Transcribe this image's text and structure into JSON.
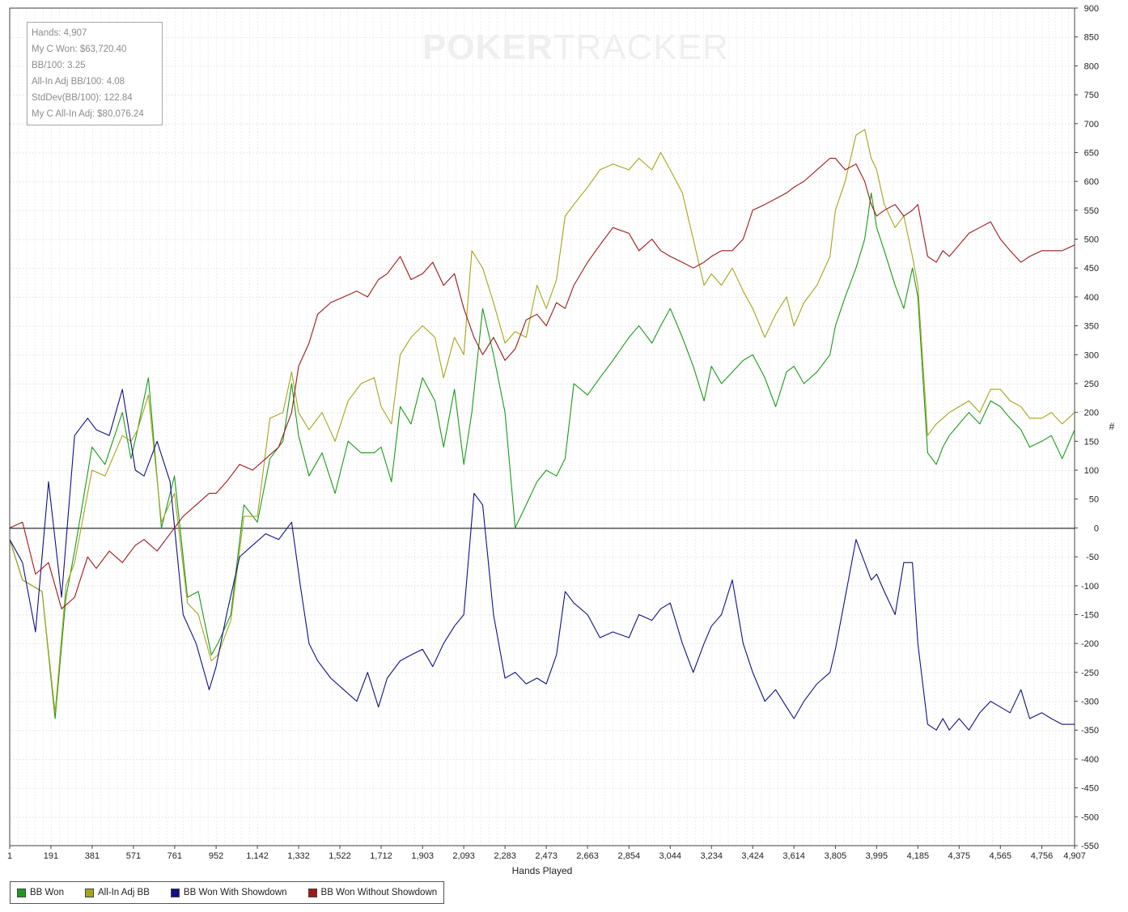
{
  "watermark": {
    "part1": "P",
    "chip": "O",
    "part2": "KER",
    "part3": "TRACKER"
  },
  "stats": [
    "Hands: 4,907",
    "My C Won: $63,720.40",
    "BB/100: 3.25",
    "All-In Adj BB/100: 4.08",
    "StdDev(BB/100): 122.84",
    "My C All-In Adj: $80,076.24"
  ],
  "chart_data": {
    "type": "line",
    "xlabel": "Hands Played",
    "ylabel": "#",
    "xlim": [
      1,
      4907
    ],
    "ylim": [
      -550,
      900
    ],
    "x_ticks": [
      1,
      191,
      381,
      571,
      761,
      952,
      1142,
      1332,
      1522,
      1712,
      1903,
      2093,
      2283,
      2473,
      2663,
      2854,
      3044,
      3234,
      3424,
      3614,
      3805,
      3995,
      4185,
      4375,
      4565,
      4756,
      4907
    ],
    "x_tick_labels": [
      "1",
      "191",
      "381",
      "571",
      "761",
      "952",
      "1,142",
      "1,332",
      "1,522",
      "1,712",
      "1,903",
      "2,093",
      "2,283",
      "2,473",
      "2,663",
      "2,854",
      "3,044",
      "3,234",
      "3,424",
      "3,614",
      "3,805",
      "3,995",
      "4,185",
      "4,375",
      "4,565",
      "4,756",
      "4,907"
    ],
    "y_ticks": [
      900,
      850,
      800,
      750,
      700,
      650,
      600,
      550,
      500,
      450,
      400,
      350,
      300,
      250,
      200,
      150,
      100,
      50,
      0,
      -50,
      -100,
      -150,
      -200,
      -250,
      -300,
      -350,
      -400,
      -450,
      -500,
      -550
    ],
    "grid": true,
    "legend_position": "bottom-left",
    "series": [
      {
        "name": "BB Won",
        "color": "#1a9a1a",
        "x": [
          1,
          60,
          150,
          210,
          260,
          300,
          380,
          440,
          520,
          560,
          590,
          640,
          700,
          760,
          820,
          870,
          930,
          960,
          1020,
          1080,
          1142,
          1200,
          1260,
          1300,
          1332,
          1380,
          1440,
          1500,
          1560,
          1620,
          1680,
          1712,
          1760,
          1800,
          1850,
          1903,
          1960,
          2000,
          2050,
          2093,
          2130,
          2180,
          2230,
          2283,
          2330,
          2380,
          2430,
          2473,
          2520,
          2560,
          2600,
          2663,
          2720,
          2780,
          2854,
          2900,
          2960,
          3000,
          3044,
          3100,
          3150,
          3200,
          3234,
          3280,
          3330,
          3380,
          3424,
          3480,
          3530,
          3580,
          3614,
          3660,
          3720,
          3780,
          3805,
          3850,
          3900,
          3940,
          3970,
          3995,
          4030,
          4080,
          4120,
          4160,
          4185,
          4230,
          4270,
          4300,
          4330,
          4375,
          4420,
          4470,
          4520,
          4565,
          4610,
          4660,
          4700,
          4756,
          4800,
          4850,
          4907
        ],
        "y": [
          -20,
          -90,
          -110,
          -330,
          -120,
          -40,
          140,
          110,
          200,
          120,
          170,
          260,
          0,
          90,
          -120,
          -110,
          -220,
          -200,
          -150,
          40,
          10,
          120,
          150,
          250,
          160,
          90,
          130,
          60,
          150,
          130,
          130,
          140,
          80,
          210,
          180,
          260,
          220,
          140,
          240,
          110,
          200,
          380,
          300,
          200,
          0,
          40,
          80,
          100,
          90,
          120,
          250,
          230,
          260,
          290,
          330,
          350,
          320,
          350,
          380,
          330,
          280,
          220,
          280,
          250,
          270,
          290,
          300,
          260,
          210,
          270,
          280,
          250,
          270,
          300,
          350,
          400,
          450,
          500,
          580,
          520,
          480,
          420,
          380,
          450,
          400,
          130,
          110,
          140,
          160,
          180,
          200,
          180,
          220,
          210,
          190,
          170,
          140,
          150,
          160,
          120,
          170
        ]
      },
      {
        "name": "All-In Adj BB",
        "color": "#a5a51a",
        "x": [
          1,
          60,
          150,
          210,
          260,
          300,
          380,
          440,
          520,
          560,
          590,
          640,
          700,
          760,
          820,
          870,
          930,
          960,
          1020,
          1080,
          1142,
          1200,
          1260,
          1300,
          1332,
          1380,
          1440,
          1500,
          1560,
          1620,
          1680,
          1712,
          1760,
          1800,
          1850,
          1903,
          1960,
          2000,
          2050,
          2093,
          2130,
          2180,
          2230,
          2283,
          2330,
          2380,
          2430,
          2473,
          2520,
          2560,
          2600,
          2663,
          2720,
          2780,
          2854,
          2900,
          2960,
          3000,
          3044,
          3100,
          3150,
          3200,
          3234,
          3280,
          3330,
          3380,
          3424,
          3480,
          3530,
          3580,
          3614,
          3660,
          3720,
          3780,
          3805,
          3850,
          3900,
          3940,
          3970,
          3995,
          4030,
          4080,
          4120,
          4160,
          4185,
          4230,
          4270,
          4300,
          4330,
          4375,
          4420,
          4470,
          4520,
          4565,
          4610,
          4660,
          4700,
          4756,
          4800,
          4850,
          4907
        ],
        "y": [
          -20,
          -90,
          -110,
          -320,
          -100,
          -60,
          100,
          90,
          160,
          150,
          170,
          230,
          10,
          60,
          -130,
          -150,
          -230,
          -220,
          -160,
          20,
          20,
          190,
          200,
          270,
          200,
          170,
          200,
          150,
          220,
          250,
          260,
          210,
          180,
          300,
          330,
          350,
          330,
          260,
          330,
          300,
          480,
          450,
          390,
          320,
          340,
          330,
          420,
          380,
          430,
          540,
          560,
          590,
          620,
          630,
          620,
          640,
          620,
          650,
          620,
          580,
          500,
          420,
          440,
          420,
          450,
          410,
          380,
          330,
          370,
          400,
          350,
          390,
          420,
          470,
          550,
          600,
          680,
          690,
          640,
          620,
          560,
          520,
          540,
          470,
          420,
          160,
          180,
          190,
          200,
          210,
          220,
          200,
          240,
          240,
          220,
          210,
          190,
          190,
          200,
          180,
          200
        ]
      },
      {
        "name": "BB Won With Showdown",
        "color": "#10108a",
        "x": [
          1,
          60,
          120,
          180,
          240,
          300,
          360,
          400,
          460,
          520,
          580,
          620,
          680,
          740,
          800,
          860,
          920,
          952,
          1000,
          1060,
          1120,
          1180,
          1240,
          1300,
          1340,
          1380,
          1420,
          1480,
          1540,
          1600,
          1650,
          1700,
          1740,
          1800,
          1850,
          1903,
          1950,
          2000,
          2050,
          2093,
          2140,
          2180,
          2230,
          2283,
          2330,
          2380,
          2430,
          2473,
          2520,
          2560,
          2600,
          2663,
          2720,
          2780,
          2854,
          2900,
          2960,
          3000,
          3044,
          3100,
          3150,
          3200,
          3234,
          3280,
          3330,
          3380,
          3424,
          3480,
          3530,
          3580,
          3614,
          3660,
          3720,
          3780,
          3805,
          3850,
          3900,
          3940,
          3970,
          3995,
          4030,
          4080,
          4120,
          4160,
          4185,
          4230,
          4270,
          4300,
          4330,
          4375,
          4420,
          4470,
          4520,
          4565,
          4610,
          4660,
          4700,
          4756,
          4800,
          4850,
          4907
        ],
        "y": [
          -20,
          -60,
          -180,
          80,
          -120,
          160,
          190,
          170,
          160,
          240,
          100,
          90,
          150,
          80,
          -150,
          -200,
          -280,
          -240,
          -150,
          -50,
          -30,
          -10,
          -20,
          10,
          -100,
          -200,
          -230,
          -260,
          -280,
          -300,
          -250,
          -310,
          -260,
          -230,
          -220,
          -210,
          -240,
          -200,
          -170,
          -150,
          60,
          40,
          -150,
          -260,
          -250,
          -270,
          -260,
          -270,
          -220,
          -110,
          -130,
          -150,
          -190,
          -180,
          -190,
          -150,
          -160,
          -140,
          -130,
          -200,
          -250,
          -200,
          -170,
          -150,
          -90,
          -200,
          -250,
          -300,
          -280,
          -310,
          -330,
          -300,
          -270,
          -250,
          -210,
          -120,
          -20,
          -60,
          -90,
          -80,
          -110,
          -150,
          -60,
          -60,
          -200,
          -340,
          -350,
          -330,
          -350,
          -330,
          -350,
          -320,
          -300,
          -310,
          -320,
          -280,
          -330,
          -320,
          -330,
          -340,
          -340
        ]
      },
      {
        "name": "BB Won Without Showdown",
        "color": "#a01818",
        "x": [
          1,
          60,
          120,
          180,
          240,
          300,
          360,
          400,
          460,
          520,
          580,
          620,
          680,
          740,
          800,
          860,
          920,
          952,
          1000,
          1060,
          1120,
          1180,
          1240,
          1300,
          1332,
          1380,
          1420,
          1480,
          1540,
          1600,
          1650,
          1700,
          1740,
          1800,
          1850,
          1903,
          1950,
          2000,
          2050,
          2093,
          2140,
          2180,
          2230,
          2283,
          2330,
          2380,
          2430,
          2473,
          2520,
          2560,
          2600,
          2663,
          2720,
          2780,
          2854,
          2900,
          2960,
          3000,
          3044,
          3100,
          3150,
          3200,
          3234,
          3280,
          3330,
          3380,
          3424,
          3480,
          3530,
          3580,
          3614,
          3660,
          3720,
          3780,
          3805,
          3850,
          3900,
          3940,
          3970,
          3995,
          4030,
          4080,
          4120,
          4160,
          4185,
          4230,
          4270,
          4300,
          4330,
          4375,
          4420,
          4470,
          4520,
          4565,
          4610,
          4660,
          4700,
          4756,
          4800,
          4850,
          4907
        ],
        "y": [
          0,
          10,
          -80,
          -60,
          -140,
          -120,
          -50,
          -70,
          -40,
          -60,
          -30,
          -20,
          -40,
          -10,
          20,
          40,
          60,
          60,
          80,
          110,
          100,
          120,
          140,
          200,
          280,
          320,
          370,
          390,
          400,
          410,
          400,
          430,
          440,
          470,
          430,
          440,
          460,
          420,
          440,
          380,
          330,
          300,
          330,
          290,
          310,
          360,
          370,
          350,
          390,
          380,
          420,
          460,
          490,
          520,
          510,
          480,
          500,
          480,
          470,
          460,
          450,
          460,
          470,
          480,
          480,
          500,
          550,
          560,
          570,
          580,
          590,
          600,
          620,
          640,
          640,
          620,
          630,
          600,
          560,
          540,
          550,
          560,
          540,
          550,
          560,
          470,
          460,
          480,
          470,
          490,
          510,
          520,
          530,
          500,
          480,
          460,
          470,
          480,
          480,
          480,
          490
        ]
      }
    ]
  },
  "legend": [
    {
      "label": "BB Won",
      "color": "#1a9a1a"
    },
    {
      "label": "All-In Adj BB",
      "color": "#a5a51a"
    },
    {
      "label": "BB Won With Showdown",
      "color": "#10108a"
    },
    {
      "label": "BB Won Without Showdown",
      "color": "#a01818"
    }
  ]
}
